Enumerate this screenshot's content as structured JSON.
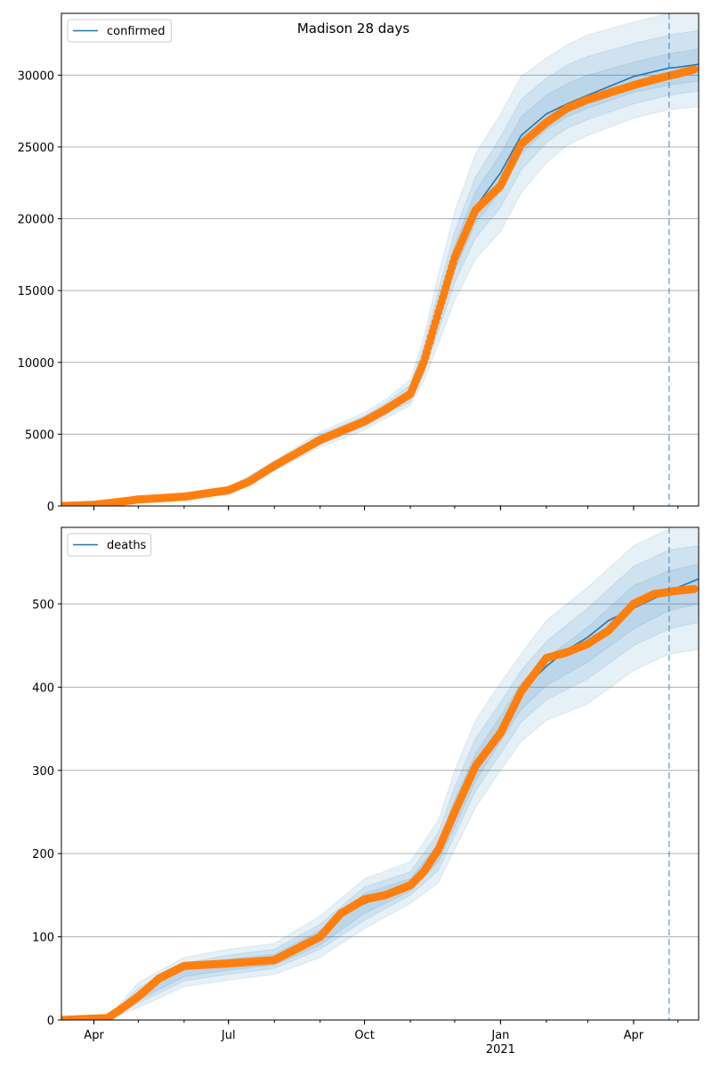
{
  "figure": {
    "title": "Madison 28 days"
  },
  "colors": {
    "model": "#1f77b4",
    "observed": "#ff7f0e",
    "band": "#1f77b4",
    "grid": "#b0b0b0"
  },
  "chart_data": [
    {
      "type": "line",
      "title": "Madison 28 days",
      "legend": {
        "entries": [
          "confirmed"
        ],
        "placement": "top-left"
      },
      "grid": "horizontal",
      "x_ticks": [
        {
          "x": "2020-04-01",
          "label": "Apr"
        },
        {
          "x": "2020-07-01",
          "label": "Jul"
        },
        {
          "x": "2020-10-01",
          "label": "Oct"
        },
        {
          "x": "2021-01-01",
          "label": "Jan"
        },
        {
          "x": "2021-04-01",
          "label": "Apr"
        }
      ],
      "x_range": [
        "2020-03-10",
        "2021-05-15"
      ],
      "forecast_start": "2021-04-25",
      "ylim": [
        0,
        34300
      ],
      "y_ticks": [
        0,
        5000,
        10000,
        15000,
        20000,
        25000,
        30000
      ],
      "series": [
        {
          "name": "confirmed",
          "x": [
            "2020-03-10",
            "2020-04-01",
            "2020-04-15",
            "2020-05-01",
            "2020-06-01",
            "2020-07-01",
            "2020-07-15",
            "2020-08-01",
            "2020-09-01",
            "2020-10-01",
            "2020-10-15",
            "2020-11-01",
            "2020-11-10",
            "2020-11-20",
            "2020-12-01",
            "2020-12-15",
            "2021-01-01",
            "2021-01-15",
            "2021-02-01",
            "2021-02-15",
            "2021-03-01",
            "2021-04-01",
            "2021-04-25"
          ],
          "values": [
            0,
            100,
            250,
            450,
            650,
            1100,
            1700,
            2800,
            4600,
            5900,
            6700,
            7800,
            10000,
            13500,
            17300,
            20800,
            23200,
            25800,
            27300,
            28000,
            28600,
            29900,
            30500
          ]
        },
        {
          "name": "observed",
          "x": [
            "2020-03-10",
            "2020-04-01",
            "2020-04-15",
            "2020-05-01",
            "2020-06-01",
            "2020-07-01",
            "2020-07-15",
            "2020-08-01",
            "2020-09-01",
            "2020-10-01",
            "2020-10-15",
            "2020-11-01",
            "2020-11-10",
            "2020-11-20",
            "2020-12-01",
            "2020-12-15",
            "2021-01-01",
            "2021-01-15",
            "2021-02-01",
            "2021-02-15",
            "2021-03-01",
            "2021-04-01",
            "2021-04-15",
            "2021-05-01",
            "2021-05-12"
          ],
          "values": [
            0,
            80,
            250,
            450,
            650,
            1100,
            1700,
            2800,
            4600,
            5900,
            6700,
            7800,
            10000,
            13500,
            17300,
            20600,
            22300,
            25200,
            26700,
            27700,
            28300,
            29300,
            29700,
            30100,
            30400
          ]
        }
      ],
      "forecast_series": {
        "x": [
          "2021-04-25",
          "2021-05-01",
          "2021-05-15"
        ],
        "values": [
          30500,
          30550,
          30750
        ]
      },
      "bands": [
        {
          "x": [
            "2020-03-10",
            "2020-06-01",
            "2020-07-01",
            "2020-08-01",
            "2020-09-01",
            "2020-10-01",
            "2020-10-15",
            "2020-11-01",
            "2020-11-10",
            "2020-11-20",
            "2020-12-01",
            "2020-12-15",
            "2021-01-01",
            "2021-01-15",
            "2021-02-01",
            "2021-02-15",
            "2021-03-01",
            "2021-04-01",
            "2021-04-25",
            "2021-05-15"
          ],
          "levels": [
            {
              "lower": [
                0,
                560,
                960,
                2450,
                4100,
                5300,
                6100,
                7000,
                8700,
                11300,
                14300,
                17200,
                19100,
                21800,
                23900,
                25100,
                25800,
                27000,
                27600,
                27800
              ],
              "upper": [
                0,
                740,
                1250,
                3150,
                5150,
                6500,
                7400,
                8800,
                11700,
                16100,
                20500,
                24500,
                27300,
                29900,
                31200,
                32100,
                32800,
                33700,
                34300,
                34300
              ]
            },
            {
              "lower": [
                0,
                590,
                1010,
                2560,
                4280,
                5520,
                6330,
                7260,
                9180,
                12200,
                15550,
                18650,
                20800,
                23400,
                25300,
                26300,
                26900,
                28000,
                28600,
                28900
              ],
              "upper": [
                0,
                715,
                1200,
                3040,
                4970,
                6270,
                7130,
                8450,
                11100,
                15000,
                19100,
                22900,
                25700,
                28300,
                29800,
                30700,
                31300,
                32200,
                32800,
                33100
              ]
            },
            {
              "lower": [
                0,
                615,
                1050,
                2650,
                4420,
                5700,
                6510,
                7480,
                9520,
                12750,
                16400,
                19700,
                21900,
                24500,
                26200,
                27100,
                27700,
                28800,
                29300,
                29600
              ],
              "upper": [
                0,
                690,
                1160,
                2950,
                4800,
                6080,
                6900,
                8150,
                10550,
                14350,
                18200,
                21900,
                24500,
                27100,
                28600,
                29400,
                30000,
                30900,
                31500,
                31800
              ]
            }
          ]
        }
      ]
    },
    {
      "type": "line",
      "title": "",
      "legend": {
        "entries": [
          "deaths"
        ],
        "placement": "top-left"
      },
      "grid": "horizontal",
      "x_ticks": [
        {
          "x": "2020-04-01",
          "label": "Apr"
        },
        {
          "x": "2020-07-01",
          "label": "Jul"
        },
        {
          "x": "2020-10-01",
          "label": "Oct"
        },
        {
          "x": "2021-01-01",
          "label": "Jan"
        },
        {
          "x": "2021-04-01",
          "label": "Apr"
        }
      ],
      "x_year_label": {
        "x": "2021-01-01",
        "label": "2021"
      },
      "x_range": [
        "2020-03-10",
        "2021-05-15"
      ],
      "forecast_start": "2021-04-25",
      "ylim": [
        0,
        592
      ],
      "y_ticks": [
        0,
        100,
        200,
        300,
        400,
        500
      ],
      "series": [
        {
          "name": "deaths",
          "x": [
            "2020-03-10",
            "2020-04-10",
            "2020-04-20",
            "2020-05-01",
            "2020-05-15",
            "2020-06-01",
            "2020-07-01",
            "2020-08-01",
            "2020-09-01",
            "2020-09-15",
            "2020-10-01",
            "2020-10-15",
            "2020-11-01",
            "2020-11-10",
            "2020-11-20",
            "2020-12-01",
            "2020-12-15",
            "2021-01-01",
            "2021-01-15",
            "2021-02-01",
            "2021-02-15",
            "2021-03-01",
            "2021-03-15",
            "2021-04-01",
            "2021-04-25"
          ],
          "values": [
            0,
            2,
            12,
            28,
            50,
            62,
            68,
            72,
            100,
            125,
            140,
            150,
            160,
            175,
            200,
            245,
            300,
            350,
            395,
            425,
            445,
            460,
            480,
            495,
            515
          ]
        },
        {
          "name": "observed",
          "x": [
            "2020-03-10",
            "2020-04-05",
            "2020-04-10",
            "2020-04-20",
            "2020-05-01",
            "2020-05-15",
            "2020-06-01",
            "2020-07-01",
            "2020-08-01",
            "2020-09-01",
            "2020-09-15",
            "2020-10-01",
            "2020-10-15",
            "2020-11-01",
            "2020-11-10",
            "2020-11-20",
            "2020-12-01",
            "2020-12-15",
            "2021-01-01",
            "2021-01-15",
            "2021-02-01",
            "2021-02-15",
            "2021-03-01",
            "2021-03-15",
            "2021-04-01",
            "2021-04-15",
            "2021-05-01",
            "2021-05-12"
          ],
          "values": [
            0,
            2,
            2,
            14,
            28,
            50,
            65,
            68,
            72,
            100,
            128,
            145,
            150,
            162,
            178,
            205,
            250,
            305,
            345,
            395,
            435,
            442,
            452,
            468,
            500,
            512,
            516,
            518
          ]
        }
      ],
      "forecast_series": {
        "x": [
          "2021-04-25",
          "2021-05-01",
          "2021-05-15"
        ],
        "values": [
          515,
          520,
          530
        ]
      },
      "bands": [
        {
          "x": [
            "2020-03-10",
            "2020-04-10",
            "2020-05-01",
            "2020-06-01",
            "2020-07-01",
            "2020-08-01",
            "2020-09-01",
            "2020-10-01",
            "2020-11-01",
            "2020-11-20",
            "2020-12-01",
            "2020-12-15",
            "2021-01-01",
            "2021-01-15",
            "2021-02-01",
            "2021-03-01",
            "2021-04-01",
            "2021-04-25",
            "2021-05-15"
          ],
          "levels": [
            {
              "lower": [
                0,
                0,
                15,
                40,
                48,
                55,
                75,
                110,
                140,
                165,
                205,
                255,
                300,
                335,
                360,
                380,
                420,
                440,
                445
              ],
              "upper": [
                0,
                2,
                45,
                75,
                85,
                92,
                125,
                170,
                190,
                240,
                300,
                360,
                405,
                440,
                480,
                520,
                570,
                590,
                590
              ]
            },
            {
              "lower": [
                0,
                0,
                20,
                47,
                55,
                62,
                85,
                120,
                150,
                180,
                222,
                275,
                320,
                358,
                385,
                410,
                450,
                470,
                478
              ],
              "upper": [
                0,
                2,
                38,
                68,
                78,
                85,
                115,
                160,
                178,
                225,
                280,
                338,
                382,
                420,
                455,
                495,
                545,
                565,
                570
              ]
            },
            {
              "lower": [
                0,
                0,
                24,
                52,
                60,
                66,
                90,
                128,
                155,
                190,
                232,
                287,
                335,
                373,
                402,
                430,
                470,
                492,
                500
              ],
              "upper": [
                0,
                2,
                34,
                64,
                73,
                79,
                108,
                152,
                170,
                212,
                265,
                320,
                365,
                405,
                435,
                472,
                522,
                540,
                548
              ]
            }
          ]
        }
      ]
    }
  ]
}
